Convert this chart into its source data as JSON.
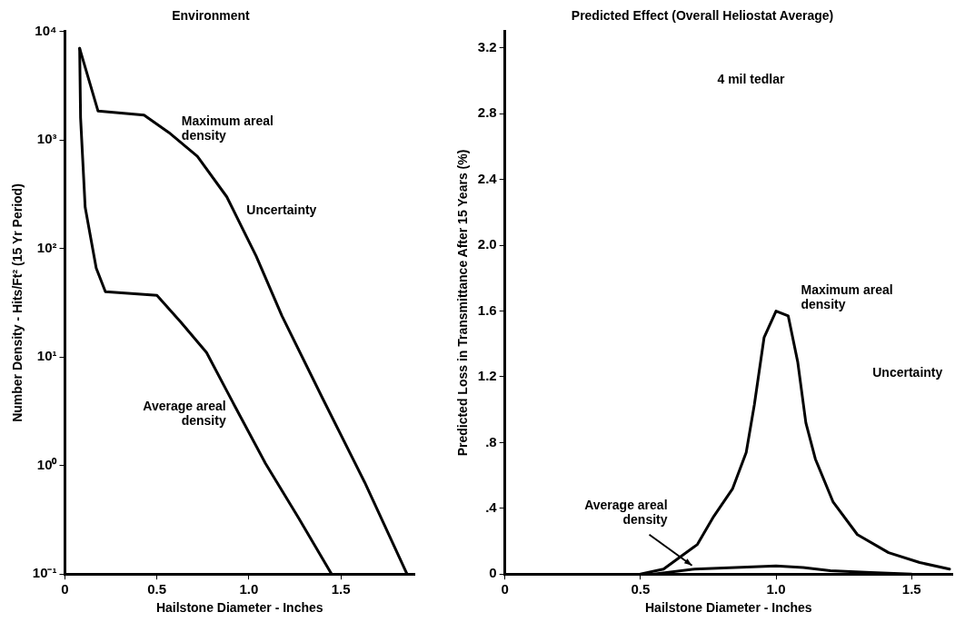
{
  "chart_data": [
    {
      "type": "line",
      "title": "Environment",
      "xlabel": "Hailstone Diameter - Inches",
      "ylabel": "Number Density - Hits/Ft² (15 Yr Period)",
      "log": "y",
      "xlim": [
        0,
        1.9
      ],
      "ylim": [
        0.1,
        10000
      ],
      "xticks": [
        0,
        0.5,
        {
          "value": 1,
          "label": "1.0"
        },
        1.5
      ],
      "yticks": [
        {
          "value": 0.1,
          "label": "10⁻¹"
        },
        {
          "value": 1,
          "label": "10⁰"
        },
        {
          "value": 10,
          "label": "10¹"
        },
        {
          "value": 100,
          "label": "10²"
        },
        {
          "value": 1000,
          "label": "10³"
        },
        {
          "value": 10000,
          "label": "10⁴"
        }
      ],
      "series": [
        {
          "name": "Maximum areal density",
          "color": "#000000",
          "x": [
            0.08,
            0.18,
            0.43,
            0.565,
            0.72,
            0.88,
            1.04,
            1.18,
            1.4,
            1.63,
            1.86
          ],
          "values": [
            7000,
            1850,
            1700,
            1175,
            710,
            300,
            85,
            24,
            4.2,
            0.7,
            0.1
          ]
        },
        {
          "name": "Average areal density",
          "color": "#000000",
          "x": [
            0.08,
            0.085,
            0.11,
            0.17,
            0.22,
            0.5,
            0.63,
            0.77,
            0.925,
            1.09,
            1.27,
            1.45
          ],
          "values": [
            7000,
            1600,
            240,
            66,
            40,
            37,
            21,
            11,
            3.5,
            1.05,
            0.33,
            0.1
          ]
        }
      ],
      "annotations": [
        "Uncertainty"
      ],
      "grid": false,
      "legend": false,
      "marker": "none"
    },
    {
      "type": "line",
      "title": "Predicted Effect (Overall Heliostat Average)",
      "xlabel": "Hailstone Diameter - Inches",
      "ylabel": "Predicted Loss in Transmittance After 15 Years (%)",
      "xlim": [
        0,
        1.65
      ],
      "ylim": [
        0,
        3.3
      ],
      "xticks": [
        0,
        0.5,
        {
          "value": 1,
          "label": "1.0"
        },
        1.5
      ],
      "yticks": [
        0,
        {
          "value": 0.4,
          "label": ".4"
        },
        {
          "value": 0.8,
          "label": ".8"
        },
        1.2,
        1.6,
        {
          "value": 2,
          "label": "2.0"
        },
        2.4,
        2.8,
        3.2
      ],
      "series": [
        {
          "name": "Maximum areal density",
          "color": "#000000",
          "x": [
            0.5,
            0.585,
            0.71,
            0.77,
            0.84,
            0.89,
            0.92,
            0.956,
            1.0,
            1.045,
            1.08,
            1.11,
            1.145,
            1.21,
            1.3,
            1.415,
            1.53,
            1.64
          ],
          "values": [
            0,
            0.03,
            0.18,
            0.35,
            0.52,
            0.74,
            1.03,
            1.44,
            1.6,
            1.57,
            1.29,
            0.92,
            0.7,
            0.44,
            0.24,
            0.13,
            0.07,
            0.03
          ]
        },
        {
          "name": "Average areal density",
          "color": "#000000",
          "x": [
            0.55,
            0.7,
            0.85,
            1.0,
            1.1,
            1.2,
            1.35,
            1.5
          ],
          "values": [
            0,
            0.03,
            0.04,
            0.05,
            0.04,
            0.02,
            0.01,
            0
          ]
        }
      ],
      "annotations": [
        "4 mil tedlar",
        "Uncertainty"
      ],
      "grid": false,
      "legend": false,
      "marker": "none"
    }
  ]
}
